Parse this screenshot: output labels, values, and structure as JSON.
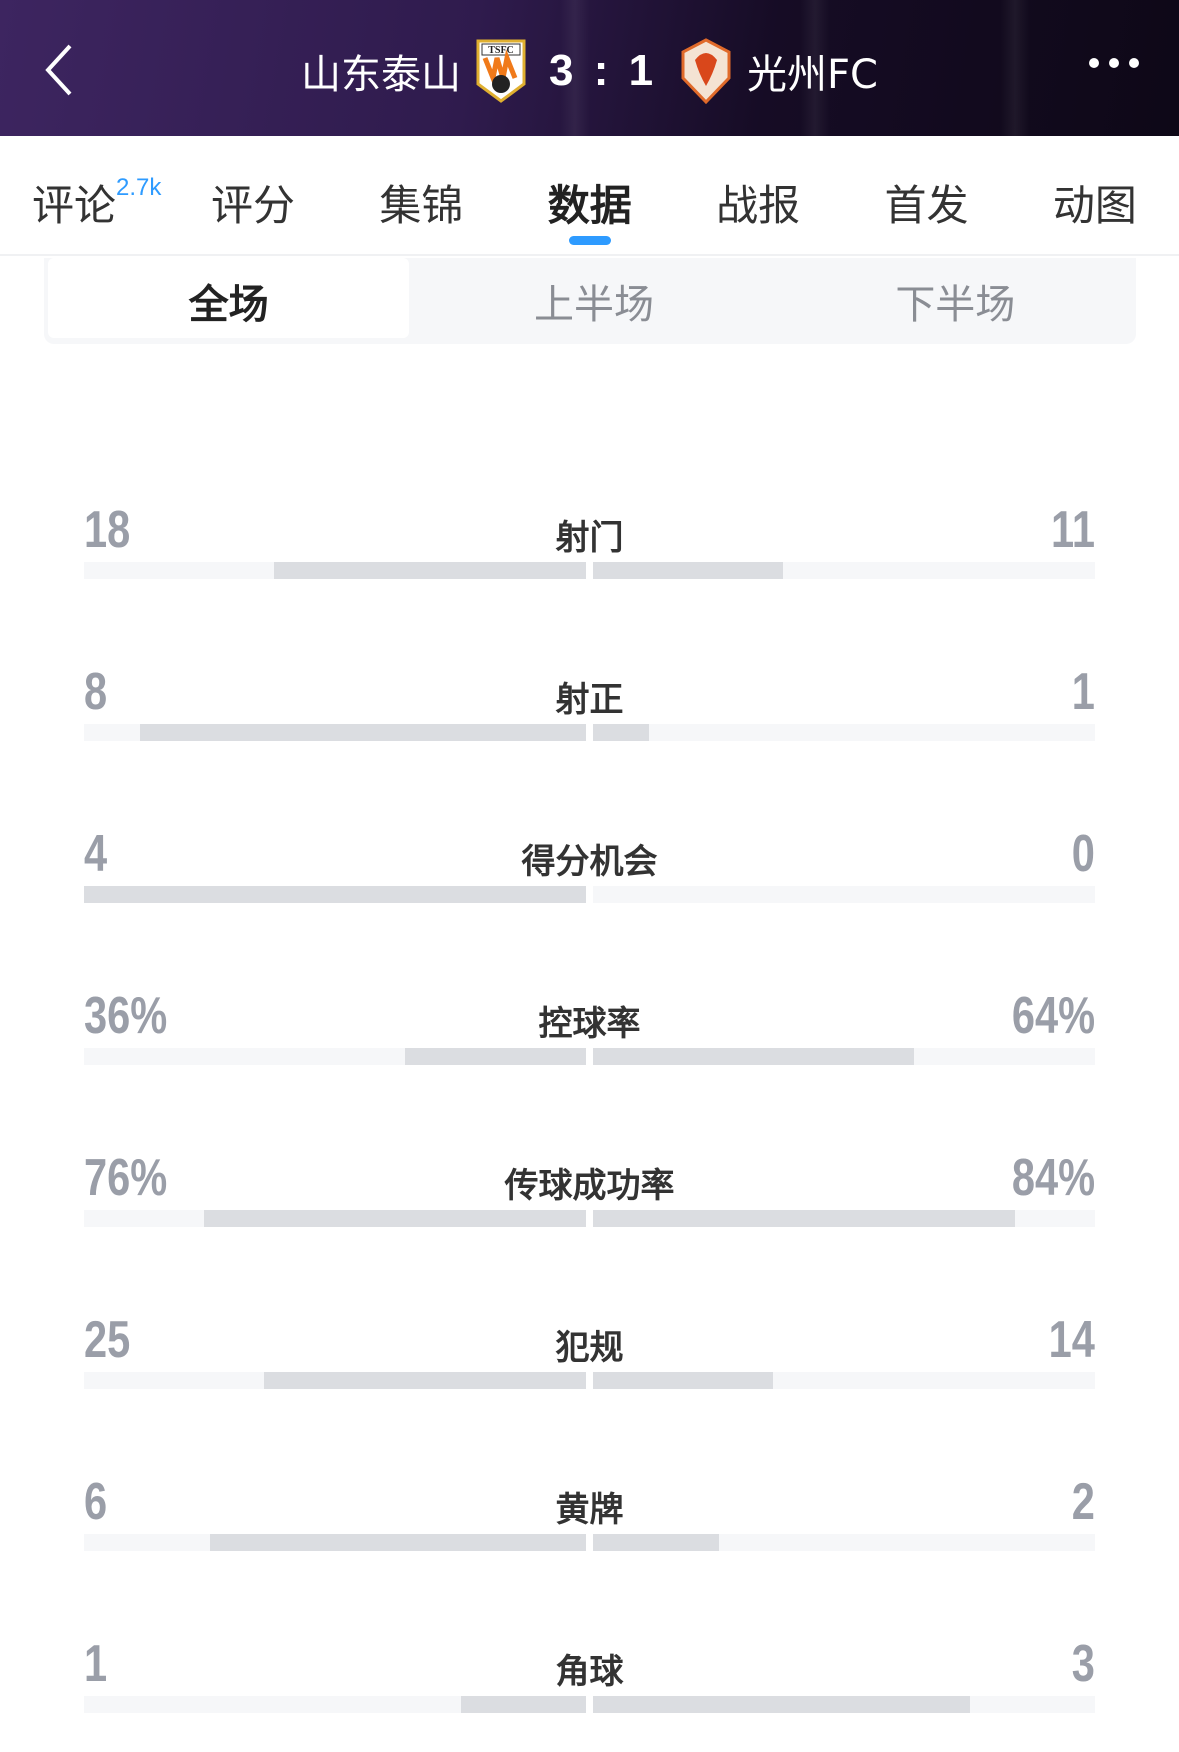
{
  "header": {
    "home_team": "山东泰山",
    "away_team": "光州FC",
    "score": "3 : 1",
    "home_crest_text": "TSFC",
    "background": "#2f1b4d"
  },
  "tabs": [
    {
      "label": "评论",
      "badge": "2.7k"
    },
    {
      "label": "评分"
    },
    {
      "label": "集锦"
    },
    {
      "label": "数据",
      "active": true
    },
    {
      "label": "战报"
    },
    {
      "label": "首发"
    },
    {
      "label": "动图"
    }
  ],
  "accent": "#2e9bff",
  "periods": [
    {
      "label": "全场",
      "active": true
    },
    {
      "label": "上半场"
    },
    {
      "label": "下半场"
    }
  ],
  "stats": [
    {
      "label": "射门",
      "home": "18",
      "away": "11",
      "home_val": 18,
      "away_val": 11
    },
    {
      "label": "射正",
      "home": "8",
      "away": "1",
      "home_val": 8,
      "away_val": 1
    },
    {
      "label": "得分机会",
      "home": "4",
      "away": "0",
      "home_val": 4,
      "away_val": 0
    },
    {
      "label": "控球率",
      "home": "36%",
      "away": "64%",
      "home_val": 36,
      "away_val": 64
    },
    {
      "label": "传球成功率",
      "home": "76%",
      "away": "84%",
      "home_val": 76,
      "away_val": 84,
      "max": 100
    },
    {
      "label": "犯规",
      "home": "25",
      "away": "14",
      "home_val": 25,
      "away_val": 14
    },
    {
      "label": "黄牌",
      "home": "6",
      "away": "2",
      "home_val": 6,
      "away_val": 2
    },
    {
      "label": "角球",
      "home": "1",
      "away": "3",
      "home_val": 1,
      "away_val": 3
    }
  ]
}
